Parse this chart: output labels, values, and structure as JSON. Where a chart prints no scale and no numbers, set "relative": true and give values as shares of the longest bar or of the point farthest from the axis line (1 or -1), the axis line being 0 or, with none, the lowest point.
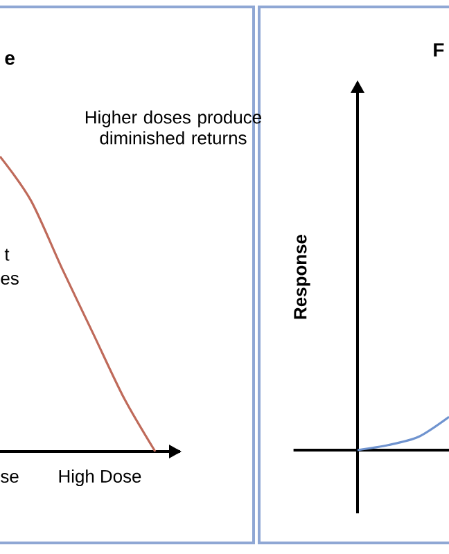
{
  "chart_data": [
    {
      "type": "line",
      "title": "e",
      "relative": true,
      "categories": [
        null,
        null,
        null,
        null,
        null,
        null
      ],
      "series": [
        {
          "color": "#bf6a5a",
          "values": [
            1,
            0.85,
            0.62,
            0.4,
            0.18,
            0
          ]
        }
      ],
      "annotations": [
        "Higher doses produce diminished returns",
        "t",
        "es",
        "se",
        "High Dose"
      ]
    },
    {
      "type": "line",
      "title": "F",
      "ylabel": "Response",
      "relative": true,
      "categories": [
        null,
        null,
        null,
        null
      ],
      "series": [
        {
          "color": "#6f93cf",
          "values": [
            0,
            0.15,
            0.4,
            1
          ]
        }
      ]
    }
  ]
}
